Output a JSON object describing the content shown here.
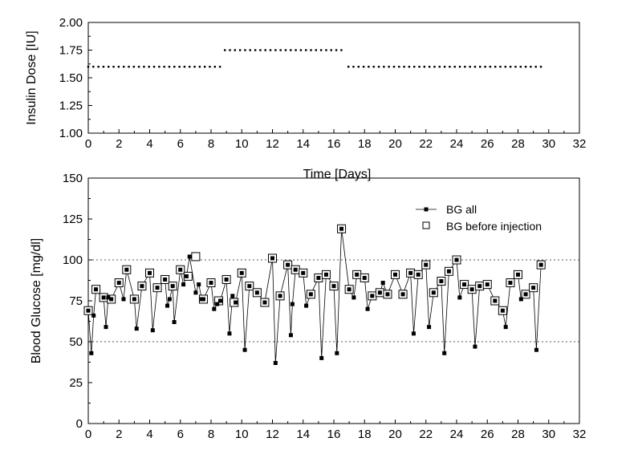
{
  "chart_data": [
    {
      "type": "scatter",
      "ylabel": "Insulin Dose [IU]",
      "xlabel": "Time [Days]",
      "xlim": [
        0,
        32
      ],
      "ylim": [
        1.0,
        2.0
      ],
      "x_ticks": [
        "0",
        "2",
        "4",
        "6",
        "8",
        "10",
        "12",
        "14",
        "16",
        "18",
        "20",
        "22",
        "24",
        "26",
        "28",
        "30",
        "32"
      ],
      "y_ticks": [
        "1.00",
        "1.25",
        "1.50",
        "1.75",
        "2.00"
      ],
      "segments": [
        {
          "x_start": 0.0,
          "x_end": 8.6,
          "step": 0.33,
          "y": 1.6
        },
        {
          "x_start": 8.9,
          "x_end": 16.7,
          "step": 0.33,
          "y": 1.75
        },
        {
          "x_start": 16.95,
          "x_end": 29.5,
          "step": 0.33,
          "y": 1.6
        }
      ]
    },
    {
      "type": "line",
      "ylabel": "Blood Glucose [mg/dl]",
      "xlabel": "",
      "xlim": [
        0,
        32
      ],
      "ylim": [
        0,
        150
      ],
      "x_ticks": [
        "0",
        "2",
        "4",
        "6",
        "8",
        "10",
        "12",
        "14",
        "16",
        "18",
        "20",
        "22",
        "24",
        "26",
        "28",
        "30",
        "32"
      ],
      "y_ticks": [
        "0",
        "25",
        "50",
        "75",
        "100",
        "125",
        "150"
      ],
      "reference_lines": [
        100,
        50
      ],
      "legend": [
        {
          "label": "BG all",
          "marker": "filled-square-line"
        },
        {
          "label": "BG before injection",
          "marker": "open-square"
        }
      ],
      "series_all": {
        "x": [
          0.0,
          0.2,
          0.35,
          0.5,
          1.0,
          1.15,
          1.3,
          1.5,
          2.0,
          2.3,
          2.5,
          3.0,
          3.15,
          3.5,
          4.0,
          4.2,
          4.5,
          5.0,
          5.15,
          5.3,
          5.5,
          5.6,
          6.0,
          6.2,
          6.4,
          6.6,
          7.0,
          7.2,
          7.4,
          7.5,
          8.0,
          8.2,
          8.4,
          8.6,
          9.0,
          9.2,
          9.4,
          9.6,
          10.0,
          10.2,
          10.5,
          11.0,
          11.5,
          12.0,
          12.2,
          12.5,
          13.0,
          13.2,
          13.3,
          13.5,
          14.0,
          14.2,
          14.5,
          15.0,
          15.2,
          15.5,
          16.0,
          16.2,
          16.5,
          17.0,
          17.3,
          17.5,
          18.0,
          18.2,
          18.5,
          19.0,
          19.2,
          19.5,
          20.0,
          20.5,
          21.0,
          21.2,
          21.5,
          22.0,
          22.2,
          22.5,
          23.0,
          23.2,
          23.5,
          24.0,
          24.2,
          24.5,
          25.0,
          25.2,
          25.5,
          26.0,
          26.5,
          27.0,
          27.2,
          27.5,
          28.0,
          28.2,
          28.5,
          29.0,
          29.2,
          29.5
        ],
        "y": [
          69,
          43,
          66,
          82,
          77,
          59,
          77,
          76,
          86,
          76,
          94,
          76,
          58,
          84,
          92,
          57,
          83,
          88,
          72,
          76,
          84,
          62,
          94,
          85,
          90,
          102,
          80,
          85,
          76,
          76,
          86,
          70,
          73,
          75,
          88,
          55,
          78,
          74,
          92,
          45,
          84,
          80,
          74,
          101,
          37,
          78,
          97,
          54,
          73,
          94,
          92,
          72,
          79,
          89,
          40,
          91,
          84,
          43,
          119,
          82,
          77,
          91,
          89,
          70,
          78,
          80,
          86,
          79,
          91,
          79,
          92,
          55,
          91,
          97,
          59,
          80,
          87,
          43,
          93,
          100,
          77,
          85,
          82,
          47,
          84,
          85,
          75,
          69,
          59,
          86,
          91,
          76,
          79,
          83,
          45,
          97
        ]
      },
      "series_before_injection": {
        "x": [
          0.0,
          0.5,
          1.0,
          1.5,
          2.0,
          2.5,
          3.0,
          3.5,
          4.0,
          4.5,
          5.0,
          5.5,
          6.0,
          6.5,
          7.0,
          7.5,
          8.0,
          8.5,
          9.0,
          9.5,
          10.0,
          10.5,
          11.0,
          11.5,
          12.0,
          12.5,
          13.0,
          13.5,
          14.0,
          14.5,
          15.0,
          15.5,
          16.0,
          16.5,
          17.0,
          17.5,
          18.0,
          18.5,
          19.0,
          19.5,
          20.0,
          20.5,
          21.0,
          21.5,
          22.0,
          22.5,
          23.0,
          23.5,
          24.0,
          24.5,
          25.0,
          25.5,
          26.0,
          26.5,
          27.0,
          27.5,
          28.0,
          28.5,
          29.0,
          29.5
        ],
        "y": [
          69,
          82,
          77,
          76,
          86,
          94,
          76,
          84,
          92,
          83,
          88,
          84,
          94,
          90,
          102,
          76,
          86,
          75,
          88,
          74,
          92,
          84,
          80,
          74,
          101,
          78,
          97,
          94,
          92,
          79,
          89,
          91,
          84,
          119,
          82,
          91,
          89,
          78,
          80,
          79,
          91,
          79,
          92,
          91,
          97,
          80,
          87,
          93,
          100,
          85,
          82,
          84,
          85,
          75,
          69,
          86,
          91,
          79,
          83,
          97
        ]
      }
    }
  ]
}
